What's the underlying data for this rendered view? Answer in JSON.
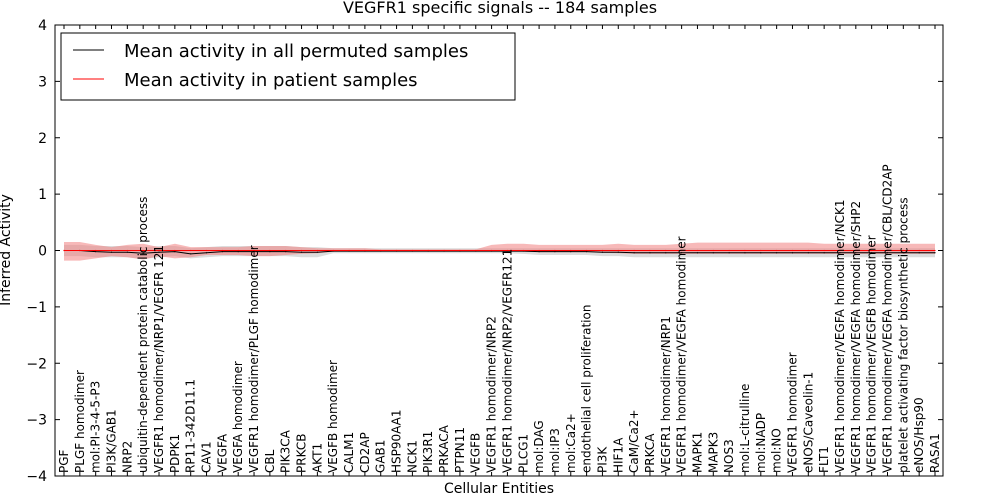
{
  "chart_data": {
    "type": "line",
    "title": "VEGFR1 specific signals -- 184 samples",
    "xlabel": "Cellular Entities",
    "ylabel": "Inferred Activity",
    "ylim": [
      -4,
      4
    ],
    "yticks": [
      4,
      3,
      2,
      1,
      0,
      -1,
      -2,
      -3,
      -4
    ],
    "ytick_labels": [
      "4",
      "3",
      "2",
      "1",
      "0",
      "−1",
      "−2",
      "−3",
      "−4"
    ],
    "grid": false,
    "legend_position": "top-left",
    "categories": [
      "PGF",
      "PLGF homodimer",
      "mol:PI-3-4-5-P3",
      "PI3K/GAB1",
      "NRP2",
      "ubiquitin-dependent protein catabolic process",
      "VEGFR1 homodimer/NRP1/VEGFR 121",
      "PDPK1",
      "RP11-342D11.1",
      "CAV1",
      "VEGFA",
      "VEGFA homodimer",
      "VEGFR1 homodimer/PLGF homodimer",
      "CBL",
      "PIK3CA",
      "PRKCB",
      "AKT1",
      "VEGFB homodimer",
      "CALM1",
      "CD2AP",
      "GAB1",
      "HSP90AA1",
      "NCK1",
      "PIK3R1",
      "PRKACA",
      "PTPN11",
      "VEGFB",
      "VEGFR1 homodimer/NRP2",
      "VEGFR1 homodimer/NRP2/VEGFR121",
      "PLCG1",
      "mol:DAG",
      "mol:IP3",
      "mol:Ca2+",
      "endothelial cell proliferation",
      "PI3K",
      "HIF1A",
      "CaM/Ca2+",
      "PRKCA",
      "VEGFR1 homodimer/NRP1",
      "VEGFR1 homodimer/VEGFA homodimer",
      "MAPK1",
      "MAPK3",
      "NOS3",
      "mol:L-citrulline",
      "mol:NADP",
      "mol:NO",
      "VEGFR1 homodimer",
      "eNOS/Caveolin-1",
      "FLT1",
      "VEGFR1 homodimer/VEGFA homodimer/NCK1",
      "VEGFR1 homodimer/VEGFA homodimer/SHP2",
      "VEGFR1 homodimer/VEGFB homodimer",
      "VEGFR1 homodimer/VEGFA homodimer/CBL/CD2AP",
      "platelet activating factor biosynthetic process",
      "eNOS/Hsp90",
      "RASA1"
    ],
    "series": [
      {
        "name": "Mean activity in all permuted samples",
        "color": "#000000",
        "band_color": "#bfbfbf",
        "values": [
          0.0,
          0.0,
          -0.02,
          -0.03,
          -0.03,
          -0.05,
          -0.03,
          -0.02,
          -0.06,
          -0.04,
          -0.02,
          -0.02,
          -0.02,
          -0.02,
          -0.02,
          -0.03,
          -0.03,
          -0.01,
          -0.01,
          -0.01,
          -0.01,
          -0.01,
          -0.01,
          -0.01,
          -0.01,
          -0.01,
          -0.01,
          -0.01,
          -0.01,
          -0.01,
          -0.02,
          -0.02,
          -0.02,
          -0.02,
          -0.03,
          -0.03,
          -0.04,
          -0.04,
          -0.04,
          -0.04,
          -0.04,
          -0.04,
          -0.04,
          -0.04,
          -0.04,
          -0.04,
          -0.04,
          -0.04,
          -0.04,
          -0.04,
          -0.04,
          -0.04,
          -0.04,
          -0.04,
          -0.04,
          -0.04
        ],
        "band_low": [
          -0.1,
          -0.1,
          -0.12,
          -0.12,
          -0.12,
          -0.15,
          -0.12,
          -0.1,
          -0.14,
          -0.12,
          -0.1,
          -0.1,
          -0.1,
          -0.1,
          -0.1,
          -0.12,
          -0.12,
          -0.05,
          -0.05,
          -0.05,
          -0.05,
          -0.05,
          -0.05,
          -0.05,
          -0.05,
          -0.05,
          -0.05,
          -0.05,
          -0.05,
          -0.06,
          -0.08,
          -0.08,
          -0.08,
          -0.08,
          -0.1,
          -0.1,
          -0.12,
          -0.12,
          -0.12,
          -0.12,
          -0.12,
          -0.12,
          -0.12,
          -0.12,
          -0.12,
          -0.12,
          -0.12,
          -0.12,
          -0.12,
          -0.12,
          -0.12,
          -0.12,
          -0.12,
          -0.12,
          -0.12,
          -0.12
        ],
        "band_high": [
          0.1,
          0.1,
          0.08,
          0.08,
          0.08,
          0.06,
          0.08,
          0.08,
          0.04,
          0.06,
          0.08,
          0.08,
          0.08,
          0.08,
          0.08,
          0.06,
          0.06,
          0.04,
          0.04,
          0.04,
          0.04,
          0.04,
          0.04,
          0.04,
          0.04,
          0.04,
          0.04,
          0.04,
          0.04,
          0.04,
          0.04,
          0.04,
          0.04,
          0.04,
          0.04,
          0.04,
          0.04,
          0.04,
          0.04,
          0.04,
          0.04,
          0.04,
          0.04,
          0.04,
          0.04,
          0.04,
          0.04,
          0.04,
          0.04,
          0.04,
          0.04,
          0.04,
          0.04,
          0.04,
          0.04,
          0.04
        ]
      },
      {
        "name": "Mean activity in patient samples",
        "color": "#ff0000",
        "band_color": "#f08080",
        "values": [
          0.0,
          0.0,
          0.0,
          0.0,
          0.0,
          0.0,
          0.0,
          0.0,
          0.0,
          0.0,
          0.0,
          0.0,
          0.0,
          0.0,
          0.0,
          0.0,
          0.0,
          0.0,
          0.0,
          0.0,
          0.0,
          0.0,
          0.0,
          0.0,
          0.0,
          0.0,
          0.0,
          0.0,
          0.0,
          0.0,
          0.0,
          0.0,
          0.0,
          0.0,
          0.0,
          0.0,
          0.0,
          0.0,
          0.0,
          0.0,
          0.0,
          0.0,
          0.0,
          0.0,
          0.0,
          0.0,
          0.0,
          0.0,
          0.0,
          0.0,
          0.0,
          0.0,
          0.0,
          0.0,
          0.0,
          0.0
        ],
        "band_low": [
          -0.18,
          -0.18,
          -0.14,
          -0.1,
          -0.12,
          -0.16,
          -0.1,
          -0.14,
          -0.12,
          -0.08,
          -0.08,
          -0.08,
          -0.1,
          -0.1,
          -0.08,
          -0.06,
          -0.05,
          -0.02,
          -0.02,
          -0.02,
          -0.02,
          -0.02,
          -0.02,
          -0.02,
          -0.02,
          -0.02,
          -0.02,
          -0.02,
          -0.02,
          -0.02,
          -0.03,
          -0.03,
          -0.03,
          -0.03,
          -0.04,
          -0.05,
          -0.06,
          -0.06,
          -0.06,
          -0.06,
          -0.06,
          -0.06,
          -0.06,
          -0.06,
          -0.06,
          -0.06,
          -0.06,
          -0.06,
          -0.06,
          -0.06,
          -0.06,
          -0.06,
          -0.06,
          -0.06,
          -0.06,
          -0.06
        ],
        "band_high": [
          0.15,
          0.15,
          0.1,
          0.06,
          0.1,
          0.12,
          0.06,
          0.12,
          0.06,
          0.06,
          0.06,
          0.06,
          0.08,
          0.08,
          0.08,
          0.06,
          0.04,
          0.04,
          0.04,
          0.04,
          0.02,
          0.02,
          0.02,
          0.02,
          0.02,
          0.02,
          0.02,
          0.1,
          0.12,
          0.12,
          0.1,
          0.1,
          0.1,
          0.1,
          0.1,
          0.12,
          0.1,
          0.1,
          0.1,
          0.12,
          0.14,
          0.14,
          0.14,
          0.14,
          0.14,
          0.14,
          0.14,
          0.14,
          0.12,
          0.12,
          0.12,
          0.12,
          0.12,
          0.12,
          0.12,
          0.12
        ]
      }
    ]
  }
}
